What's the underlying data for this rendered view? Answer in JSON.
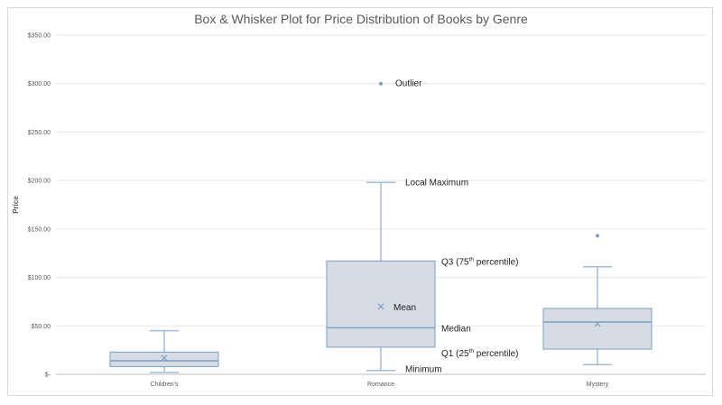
{
  "chart_data": {
    "type": "box",
    "title": "Box & Whisker Plot for Price Distribution of Books by Genre",
    "xlabel": "",
    "ylabel": "Price",
    "ylim": [
      0,
      350
    ],
    "yticks": [
      0,
      50,
      100,
      150,
      200,
      250,
      300,
      350
    ],
    "ytick_labels": [
      "$-",
      "$50.00",
      "$100.00",
      "$150.00",
      "$200.00",
      "$250.00",
      "$300.00",
      "$350.00"
    ],
    "grid": true,
    "categories": [
      "Children's",
      "Romance",
      "Mystery"
    ],
    "boxes": [
      {
        "category": "Children's",
        "min": 2,
        "q1": 8,
        "median": 14,
        "q3": 23,
        "max": 45,
        "mean": 17,
        "outliers": []
      },
      {
        "category": "Romance",
        "min": 4,
        "q1": 28,
        "median": 48,
        "q3": 117,
        "max": 198,
        "mean": 70,
        "outliers": [
          300
        ]
      },
      {
        "category": "Mystery",
        "min": 10,
        "q1": 26,
        "median": 54,
        "q3": 68,
        "max": 111,
        "mean": 52,
        "outliers": [
          143
        ]
      }
    ],
    "colors": {
      "box_fill": "#d6dce5",
      "box_stroke": "#7f9fc4",
      "whisker": "#a3bcd8",
      "point": "#7f9fc4",
      "grid": "#e6e6e6"
    },
    "annotations": [
      {
        "text": "Outlier",
        "y": 300
      },
      {
        "text": "Local Maximum",
        "y": 198
      },
      {
        "text": "Q3 (75",
        "sup": "th",
        "tail": " percentile)",
        "y": 117
      },
      {
        "text": "Mean",
        "y": 70
      },
      {
        "text": "Median",
        "y": 48
      },
      {
        "text": "Q1 (25",
        "sup": "th",
        "tail": " percentile)",
        "y": 28
      },
      {
        "text": "Minimum",
        "y": 4
      }
    ]
  }
}
